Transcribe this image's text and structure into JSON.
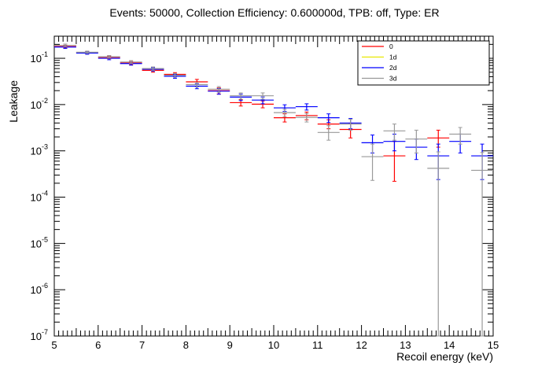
{
  "chart_data": {
    "type": "scatter",
    "title": "Events: 50000, Collection Efficiency: 0.600000d, TPB: off, Type: ER",
    "xlabel": "Recoil energy (keV)",
    "ylabel": "Leakage",
    "xlim": [
      5,
      15
    ],
    "ylim": [
      1e-07,
      0.3
    ],
    "ylog": true,
    "grid": false,
    "legend_position": "top-right",
    "x_ticks": [
      "5",
      "6",
      "7",
      "8",
      "9",
      "10",
      "11",
      "12",
      "13",
      "14",
      "15"
    ],
    "y_ticks": [
      {
        "value": 1e-07,
        "exp": "-7"
      },
      {
        "value": 1e-06,
        "exp": "-6"
      },
      {
        "value": 1e-05,
        "exp": "-5"
      },
      {
        "value": 0.0001,
        "exp": "-4"
      },
      {
        "value": 0.001,
        "exp": "-3"
      },
      {
        "value": 0.01,
        "exp": "-2"
      },
      {
        "value": 0.1,
        "exp": "-1"
      }
    ],
    "series": [
      {
        "name": "0",
        "color": "#ff0000",
        "points": [
          {
            "x0": 5.0,
            "x1": 5.5,
            "y": 0.18,
            "lo": 0.168,
            "hi": 0.192
          },
          {
            "x0": 5.5,
            "x1": 6.0,
            "y": 0.132,
            "lo": 0.124,
            "hi": 0.14
          },
          {
            "x0": 6.0,
            "x1": 6.5,
            "y": 0.105,
            "lo": 0.098,
            "hi": 0.112
          },
          {
            "x0": 6.5,
            "x1": 7.0,
            "y": 0.079,
            "lo": 0.073,
            "hi": 0.085
          },
          {
            "x0": 7.0,
            "x1": 7.5,
            "y": 0.055,
            "lo": 0.05,
            "hi": 0.06
          },
          {
            "x0": 7.5,
            "x1": 8.0,
            "y": 0.045,
            "lo": 0.041,
            "hi": 0.049
          },
          {
            "x0": 8.0,
            "x1": 8.5,
            "y": 0.031,
            "lo": 0.027,
            "hi": 0.035
          },
          {
            "x0": 8.5,
            "x1": 9.0,
            "y": 0.02,
            "lo": 0.017,
            "hi": 0.023
          },
          {
            "x0": 9.0,
            "x1": 9.5,
            "y": 0.011,
            "lo": 0.0093,
            "hi": 0.0128
          },
          {
            "x0": 9.5,
            "x1": 10.0,
            "y": 0.0102,
            "lo": 0.0085,
            "hi": 0.012
          },
          {
            "x0": 10.0,
            "x1": 10.5,
            "y": 0.0052,
            "lo": 0.0042,
            "hi": 0.0063
          },
          {
            "x0": 10.5,
            "x1": 11.0,
            "y": 0.0058,
            "lo": 0.0047,
            "hi": 0.0069
          },
          {
            "x0": 11.0,
            "x1": 11.5,
            "y": 0.0038,
            "lo": 0.003,
            "hi": 0.0047
          },
          {
            "x0": 11.5,
            "x1": 12.0,
            "y": 0.0029,
            "lo": 0.0019,
            "hi": 0.0039
          },
          {
            "x0": 12.5,
            "x1": 13.0,
            "y": 0.00078,
            "lo": 0.00022,
            "hi": 0.0016
          },
          {
            "x0": 13.5,
            "x1": 14.0,
            "y": 0.0019,
            "lo": 0.0012,
            "hi": 0.0028
          }
        ]
      },
      {
        "name": "1d",
        "color": "#e8e800",
        "points": []
      },
      {
        "name": "2d",
        "color": "#0000ff",
        "points": [
          {
            "x0": 5.0,
            "x1": 5.5,
            "y": 0.175,
            "lo": 0.163,
            "hi": 0.187
          },
          {
            "x0": 5.5,
            "x1": 6.0,
            "y": 0.13,
            "lo": 0.122,
            "hi": 0.138
          },
          {
            "x0": 6.0,
            "x1": 6.5,
            "y": 0.1,
            "lo": 0.093,
            "hi": 0.107
          },
          {
            "x0": 6.5,
            "x1": 7.0,
            "y": 0.077,
            "lo": 0.071,
            "hi": 0.083
          },
          {
            "x0": 7.0,
            "x1": 7.5,
            "y": 0.058,
            "lo": 0.053,
            "hi": 0.063
          },
          {
            "x0": 7.5,
            "x1": 8.0,
            "y": 0.041,
            "lo": 0.037,
            "hi": 0.045
          },
          {
            "x0": 8.0,
            "x1": 8.5,
            "y": 0.025,
            "lo": 0.022,
            "hi": 0.028
          },
          {
            "x0": 8.5,
            "x1": 9.0,
            "y": 0.0195,
            "lo": 0.0167,
            "hi": 0.0223
          },
          {
            "x0": 9.0,
            "x1": 9.5,
            "y": 0.0145,
            "lo": 0.0122,
            "hi": 0.0168
          },
          {
            "x0": 9.5,
            "x1": 10.0,
            "y": 0.0125,
            "lo": 0.0104,
            "hi": 0.0146
          },
          {
            "x0": 10.0,
            "x1": 10.5,
            "y": 0.0085,
            "lo": 0.0071,
            "hi": 0.0099
          },
          {
            "x0": 10.5,
            "x1": 11.0,
            "y": 0.009,
            "lo": 0.0076,
            "hi": 0.0104
          },
          {
            "x0": 11.0,
            "x1": 11.5,
            "y": 0.0052,
            "lo": 0.0041,
            "hi": 0.0063
          },
          {
            "x0": 11.5,
            "x1": 12.0,
            "y": 0.004,
            "lo": 0.003,
            "hi": 0.005
          },
          {
            "x0": 12.0,
            "x1": 12.5,
            "y": 0.0015,
            "lo": 0.0009,
            "hi": 0.0022
          },
          {
            "x0": 12.5,
            "x1": 13.0,
            "y": 0.0016,
            "lo": 0.001,
            "hi": 0.0023
          },
          {
            "x0": 13.0,
            "x1": 13.5,
            "y": 0.0012,
            "lo": 0.00065,
            "hi": 0.0018
          },
          {
            "x0": 13.5,
            "x1": 14.0,
            "y": 0.00078,
            "lo": 0.00024,
            "hi": 0.0014
          },
          {
            "x0": 14.0,
            "x1": 14.5,
            "y": 0.0016,
            "lo": 0.0009,
            "hi": 0.0023
          },
          {
            "x0": 14.5,
            "x1": 15.0,
            "y": 0.00078,
            "lo": 0.00024,
            "hi": 0.0014
          }
        ]
      },
      {
        "name": "3d",
        "color": "#999999",
        "points": [
          {
            "x0": 5.0,
            "x1": 5.5,
            "y": 0.19,
            "lo": 0.177,
            "hi": 0.203
          },
          {
            "x0": 5.5,
            "x1": 6.0,
            "y": 0.135,
            "lo": 0.127,
            "hi": 0.143
          },
          {
            "x0": 6.0,
            "x1": 6.5,
            "y": 0.108,
            "lo": 0.101,
            "hi": 0.115
          },
          {
            "x0": 6.5,
            "x1": 7.0,
            "y": 0.083,
            "lo": 0.077,
            "hi": 0.089
          },
          {
            "x0": 7.0,
            "x1": 7.5,
            "y": 0.06,
            "lo": 0.055,
            "hi": 0.065
          },
          {
            "x0": 7.5,
            "x1": 8.0,
            "y": 0.043,
            "lo": 0.039,
            "hi": 0.047
          },
          {
            "x0": 8.0,
            "x1": 8.5,
            "y": 0.027,
            "lo": 0.024,
            "hi": 0.03
          },
          {
            "x0": 8.5,
            "x1": 9.0,
            "y": 0.0215,
            "lo": 0.0185,
            "hi": 0.0245
          },
          {
            "x0": 9.0,
            "x1": 9.5,
            "y": 0.0155,
            "lo": 0.0131,
            "hi": 0.0179
          },
          {
            "x0": 9.5,
            "x1": 10.0,
            "y": 0.0155,
            "lo": 0.0131,
            "hi": 0.0179
          },
          {
            "x0": 10.0,
            "x1": 10.5,
            "y": 0.0067,
            "lo": 0.0055,
            "hi": 0.0079
          },
          {
            "x0": 10.5,
            "x1": 11.0,
            "y": 0.0053,
            "lo": 0.0042,
            "hi": 0.0064
          },
          {
            "x0": 11.0,
            "x1": 11.5,
            "y": 0.0025,
            "lo": 0.0017,
            "hi": 0.0035
          },
          {
            "x0": 11.5,
            "x1": 12.0,
            "y": 0.0038,
            "lo": 0.0028,
            "hi": 0.0048
          },
          {
            "x0": 12.0,
            "x1": 12.5,
            "y": 0.00075,
            "lo": 0.00023,
            "hi": 0.0014
          },
          {
            "x0": 12.5,
            "x1": 13.0,
            "y": 0.0027,
            "lo": 0.0017,
            "hi": 0.0038
          },
          {
            "x0": 13.0,
            "x1": 13.5,
            "y": 0.0018,
            "lo": 0.0009,
            "hi": 0.0028
          },
          {
            "x0": 13.5,
            "x1": 14.0,
            "y": 0.00042,
            "lo": 1e-07,
            "hi": 0.00095
          },
          {
            "x0": 14.0,
            "x1": 14.5,
            "y": 0.0023,
            "lo": 0.0014,
            "hi": 0.0032
          },
          {
            "x0": 14.5,
            "x1": 15.0,
            "y": 0.00038,
            "lo": 1e-07,
            "hi": 0.00092
          }
        ]
      }
    ]
  }
}
